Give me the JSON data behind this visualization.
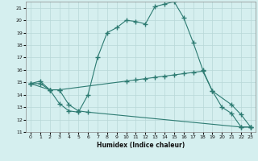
{
  "xlabel": "Humidex (Indice chaleur)",
  "background_color": "#d5efef",
  "line_color": "#2d7b72",
  "grid_color": "#b8d8d8",
  "xlim": [
    -0.5,
    23.5
  ],
  "ylim": [
    11,
    21.5
  ],
  "yticks": [
    11,
    12,
    13,
    14,
    15,
    16,
    17,
    18,
    19,
    20,
    21
  ],
  "xticks": [
    0,
    1,
    2,
    3,
    4,
    5,
    6,
    7,
    8,
    9,
    10,
    11,
    12,
    13,
    14,
    15,
    16,
    17,
    18,
    19,
    20,
    21,
    22,
    23
  ],
  "curve1_x": [
    0,
    1,
    2,
    3,
    4,
    5,
    6,
    7,
    8,
    9,
    10,
    11,
    12,
    13,
    14,
    15,
    16,
    17,
    18,
    19,
    20,
    21,
    22,
    23
  ],
  "curve1_y": [
    14.9,
    15.1,
    14.4,
    13.3,
    12.7,
    12.6,
    14.0,
    17.0,
    19.0,
    19.4,
    20.0,
    19.9,
    19.7,
    21.1,
    21.3,
    21.5,
    20.2,
    18.2,
    16.0,
    14.3,
    13.0,
    12.5,
    11.4,
    11.4
  ],
  "curve2_x": [
    0,
    2,
    3,
    10,
    11,
    12,
    13,
    14,
    15,
    16,
    17,
    18,
    19,
    21,
    22,
    23
  ],
  "curve2_y": [
    14.9,
    14.4,
    14.4,
    15.1,
    15.2,
    15.3,
    15.4,
    15.5,
    15.6,
    15.7,
    15.8,
    15.9,
    14.3,
    13.2,
    12.4,
    11.4
  ],
  "curve3_x": [
    0,
    1,
    2,
    3,
    4,
    5,
    6,
    22,
    23
  ],
  "curve3_y": [
    14.9,
    14.9,
    14.4,
    14.4,
    13.2,
    12.7,
    12.6,
    11.4,
    11.4
  ]
}
